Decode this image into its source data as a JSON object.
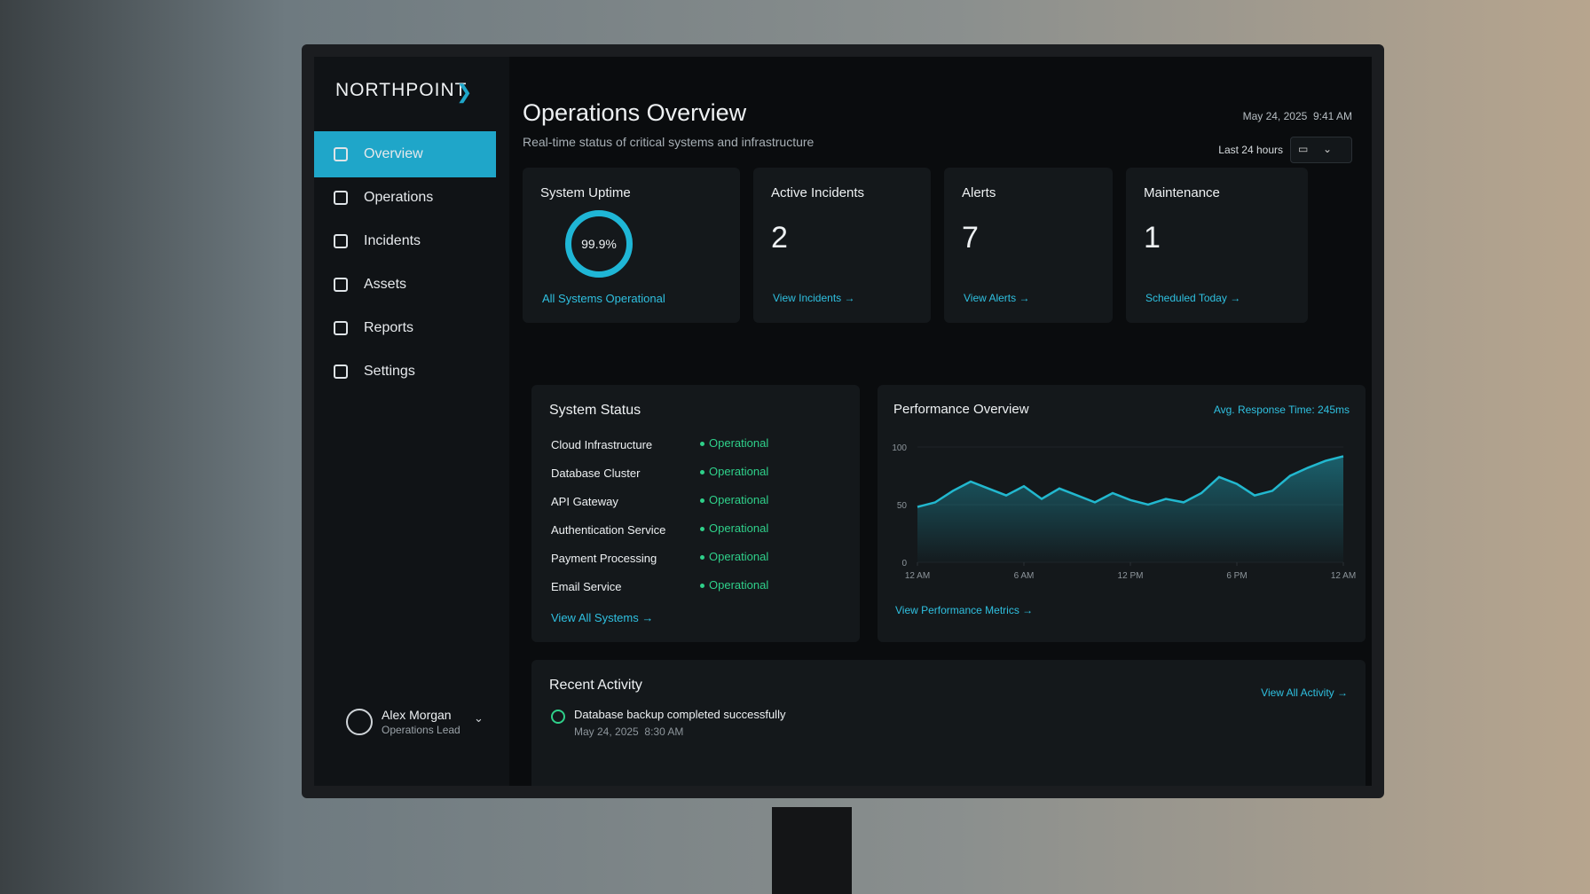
{
  "brand": "NORTHPOINT",
  "nav": [
    "Overview",
    "Operations",
    "Incidents",
    "Assets",
    "Reports",
    "Settings"
  ],
  "user": {
    "name": "Alex Morgan",
    "role": "Operations Lead"
  },
  "header": {
    "title": "Operations Overview",
    "subtitle": "Real-time status of critical systems and infrastructure",
    "date": "May 24, 2025",
    "time": "9:41 AM",
    "range": "Last 24 hours"
  },
  "cards": [
    {
      "title": "System Uptime",
      "value": "99.9%",
      "link": "All Systems Operational"
    },
    {
      "title": "Active Incidents",
      "value": 2,
      "link": "View Incidents"
    },
    {
      "title": "Alerts",
      "value": 7,
      "link": "View Alerts"
    },
    {
      "title": "Maintenance",
      "value": 1,
      "link": "Scheduled Today"
    }
  ],
  "system_status": {
    "title": "System Status",
    "rows": [
      [
        "Cloud Infrastructure",
        "Operational"
      ],
      [
        "Database Cluster",
        "Operational"
      ],
      [
        "API Gateway",
        "Operational"
      ],
      [
        "Authentication Service",
        "Operational"
      ],
      [
        "Payment Processing",
        "Operational"
      ],
      [
        "Email Service",
        "Operational"
      ]
    ],
    "link": "View All Systems"
  },
  "chart_data": {
    "type": "area",
    "title": "Performance Overview",
    "annotation": "Avg. Response Time: 245ms",
    "color": "#22b8cf",
    "x": [
      0,
      1,
      2,
      3,
      4,
      5,
      6,
      7,
      8,
      9,
      10,
      11,
      12,
      13,
      14,
      15,
      16,
      17,
      18,
      19,
      20,
      21,
      22,
      23,
      24
    ],
    "values": [
      48,
      52,
      62,
      70,
      64,
      58,
      66,
      55,
      64,
      58,
      52,
      60,
      54,
      50,
      55,
      52,
      60,
      74,
      68,
      58,
      62,
      75,
      82,
      88,
      92
    ],
    "xlim": [
      0,
      24
    ],
    "ylim": [
      0,
      100
    ],
    "yticks": [
      0,
      50,
      100
    ],
    "xticks": [
      {
        "value": 0,
        "label": "12 AM"
      },
      {
        "value": 6,
        "label": "6 AM"
      },
      {
        "value": 12,
        "label": "12 PM"
      },
      {
        "value": 18,
        "label": "6 PM"
      },
      {
        "value": 24,
        "label": "12 AM"
      }
    ],
    "link": "View Performance Metrics"
  },
  "activity": {
    "title": "Recent Activity",
    "link": "View All Activity",
    "items": [
      {
        "text": "Database backup completed successfully",
        "date": "May 24, 2025",
        "time": "8:30 AM"
      }
    ]
  }
}
